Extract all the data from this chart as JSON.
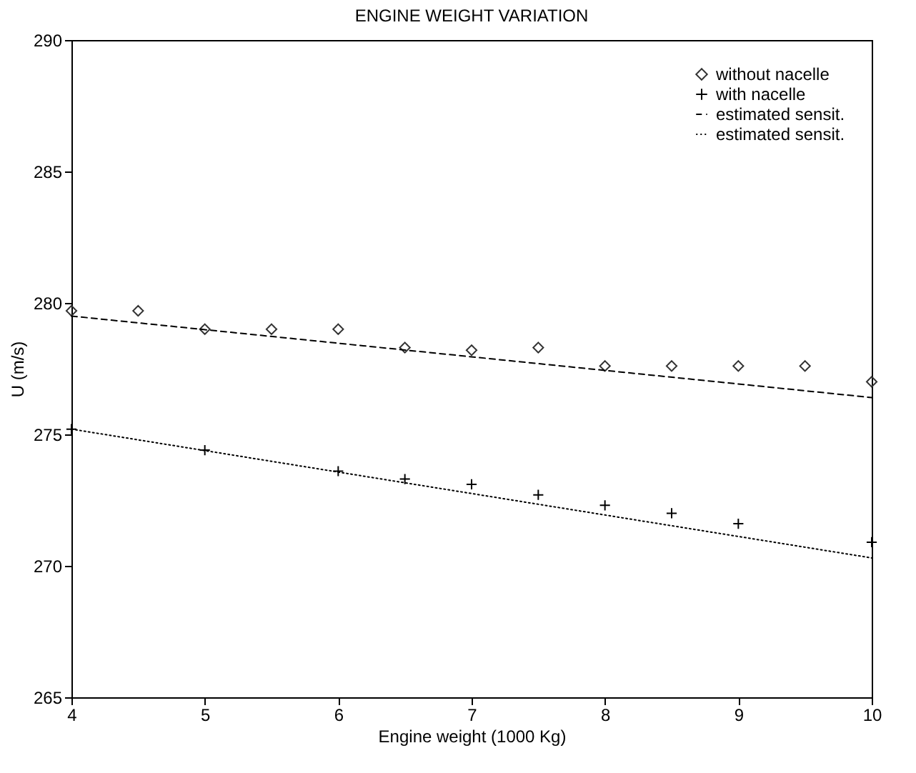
{
  "chart_data": {
    "type": "scatter",
    "title": "ENGINE WEIGHT VARIATION",
    "xlabel": "Engine weight (1000 Kg)",
    "ylabel": "U (m/s)",
    "xlim": [
      4,
      10
    ],
    "xticks": [
      4,
      5,
      6,
      7,
      8,
      9,
      10
    ],
    "ylim": [
      265,
      290
    ],
    "yticks": [
      265,
      270,
      275,
      280,
      285,
      290
    ],
    "grid": false,
    "legend": "top right",
    "series": [
      {
        "name": "without nacelle",
        "marker": "diamond",
        "color": "#333333",
        "x": [
          4,
          4.5,
          5,
          5.5,
          6,
          6.5,
          7,
          7.5,
          8,
          8.5,
          9,
          9.5,
          10
        ],
        "values": [
          279.7,
          279.7,
          279.0,
          279.0,
          279.0,
          278.3,
          278.2,
          278.3,
          277.6,
          277.6,
          277.6,
          277.6,
          277.0
        ]
      },
      {
        "name": "with nacelle",
        "marker": "cross",
        "color": "#000000",
        "x": [
          4,
          5,
          6,
          6.5,
          7,
          7.5,
          8,
          8.5,
          9,
          10
        ],
        "values": [
          275.2,
          274.4,
          273.6,
          273.3,
          273.1,
          272.7,
          272.3,
          272.0,
          271.6,
          270.9
        ]
      },
      {
        "name": "estimated sensit.",
        "type": "line",
        "line_style": "dashed",
        "color": "#000000",
        "x": [
          4,
          10
        ],
        "values": [
          279.5,
          276.4
        ]
      },
      {
        "name": "estimated sensit.",
        "type": "line",
        "line_style": "dotted",
        "color": "#000000",
        "x": [
          4,
          10
        ],
        "values": [
          275.2,
          270.3
        ]
      }
    ]
  }
}
